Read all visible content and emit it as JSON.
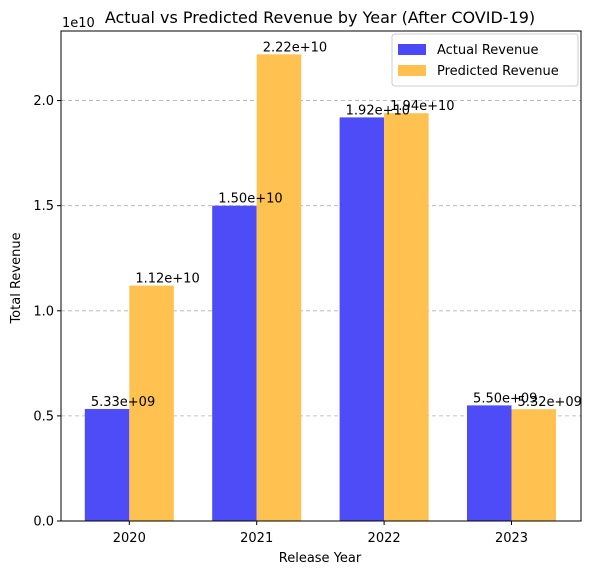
{
  "chart_data": {
    "type": "bar",
    "title": "Actual vs Predicted Revenue by Year (After COVID-19)",
    "xlabel": "Release Year",
    "ylabel": "Total Revenue",
    "scale_note": "1e10",
    "categories": [
      "2020",
      "2021",
      "2022",
      "2023"
    ],
    "series": [
      {
        "name": "Actual Revenue",
        "color": "#4a48f7",
        "values": [
          5330000000,
          15000000000,
          19200000000,
          5500000000
        ],
        "labels": [
          "5.33e+09",
          "1.50e+10",
          "1.92e+10",
          "5.50e+09"
        ]
      },
      {
        "name": "Predicted Revenue",
        "color": "#ffc04d",
        "values": [
          11200000000,
          22200000000,
          19400000000,
          5320000000
        ],
        "labels": [
          "1.12e+10",
          "2.22e+10",
          "1.94e+10",
          "5.32e+09"
        ]
      }
    ],
    "ylim": [
      0,
      23310000000
    ],
    "yticks": [
      0,
      5000000000,
      10000000000,
      15000000000,
      20000000000
    ],
    "ytick_labels": [
      "0.0",
      "0.5",
      "1.0",
      "1.5",
      "2.0"
    ],
    "grid": "y-dashed",
    "legend_position": "top-right"
  }
}
